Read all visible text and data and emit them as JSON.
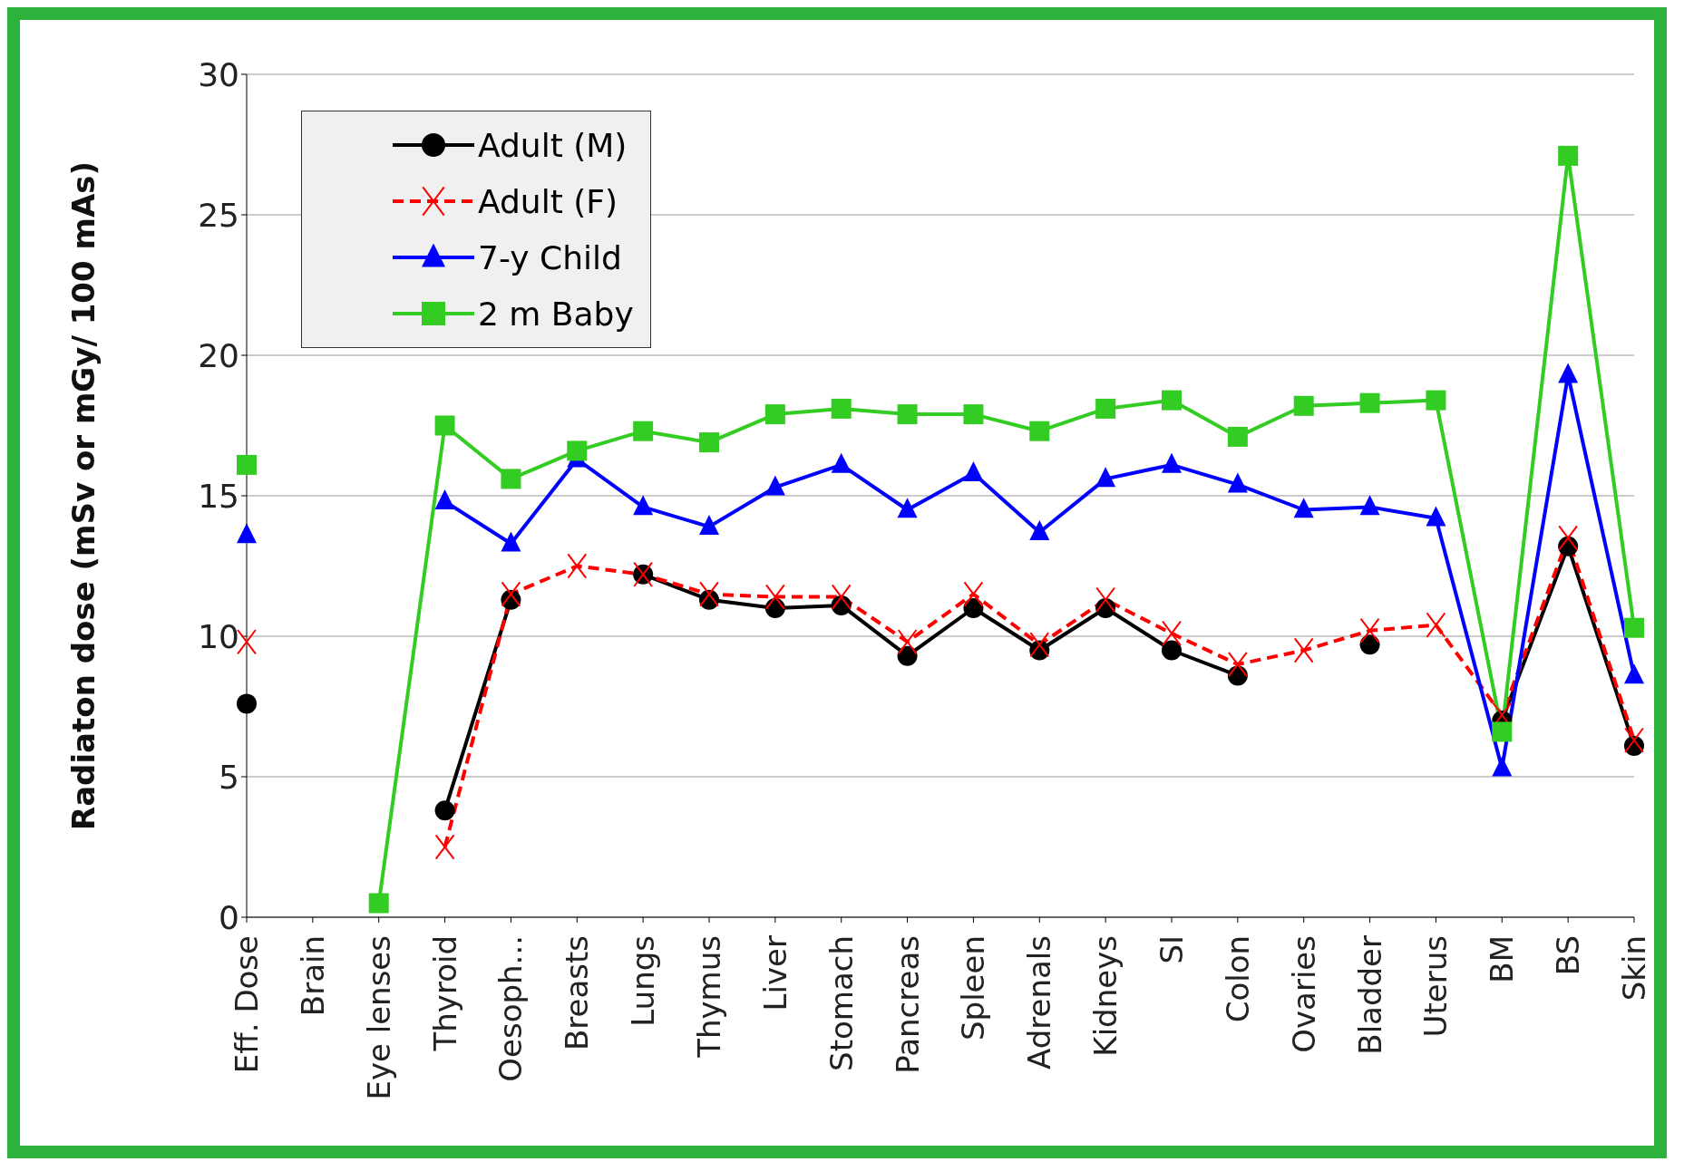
{
  "chart_data": {
    "type": "line",
    "ylabel": "Radiaton dose  (mSv or mGy/ 100 mAs)",
    "categories": [
      "Eff. Dose",
      "Brain",
      "Eye lenses",
      "Thyroid",
      "Oesoph...",
      "Breasts",
      "Lungs",
      "Thymus",
      "Liver",
      "Stomach",
      "Pancreas",
      "Spleen",
      "Adrenals",
      "Kidneys",
      "SI",
      "Colon",
      "Ovaries",
      "Bladder",
      "Uterus",
      "BM",
      "BS",
      "Skin"
    ],
    "series": [
      {
        "name": "Adult (M)",
        "color": "#000000",
        "marker": "circle",
        "line_style": "solid",
        "values": [
          7.6,
          null,
          null,
          3.8,
          11.3,
          null,
          12.2,
          11.3,
          11.0,
          11.1,
          9.3,
          11.0,
          9.5,
          11.0,
          9.5,
          8.6,
          null,
          9.7,
          null,
          7.0,
          13.2,
          6.1
        ]
      },
      {
        "name": "Adult (F)",
        "color": "#ff0000",
        "marker": "cross",
        "line_style": "dashed",
        "values": [
          9.8,
          null,
          null,
          2.5,
          11.5,
          12.5,
          12.2,
          11.5,
          11.4,
          11.4,
          9.8,
          11.5,
          9.7,
          11.3,
          10.1,
          9.0,
          9.5,
          10.2,
          10.4,
          7.2,
          13.5,
          6.3
        ]
      },
      {
        "name": "7-y Child",
        "color": "#0000ff",
        "marker": "triangle",
        "line_style": "solid",
        "values": [
          13.6,
          null,
          null,
          14.8,
          13.3,
          16.3,
          14.6,
          13.9,
          15.3,
          16.1,
          14.5,
          15.8,
          13.7,
          15.6,
          16.1,
          15.4,
          14.5,
          14.6,
          14.2,
          5.3,
          19.3,
          8.6
        ]
      },
      {
        "name": "2 m Baby",
        "color": "#33cc22",
        "marker": "square",
        "line_style": "solid",
        "values": [
          16.1,
          null,
          0.5,
          17.5,
          15.6,
          16.6,
          17.3,
          16.9,
          17.9,
          18.1,
          17.9,
          17.9,
          17.3,
          18.1,
          18.4,
          17.1,
          18.2,
          18.3,
          18.4,
          6.6,
          27.1,
          10.3
        ]
      }
    ],
    "ylim": [
      0,
      30
    ],
    "yticks": [
      0,
      5,
      10,
      15,
      20,
      25,
      30
    ],
    "grid": "y",
    "legend": "top left"
  }
}
